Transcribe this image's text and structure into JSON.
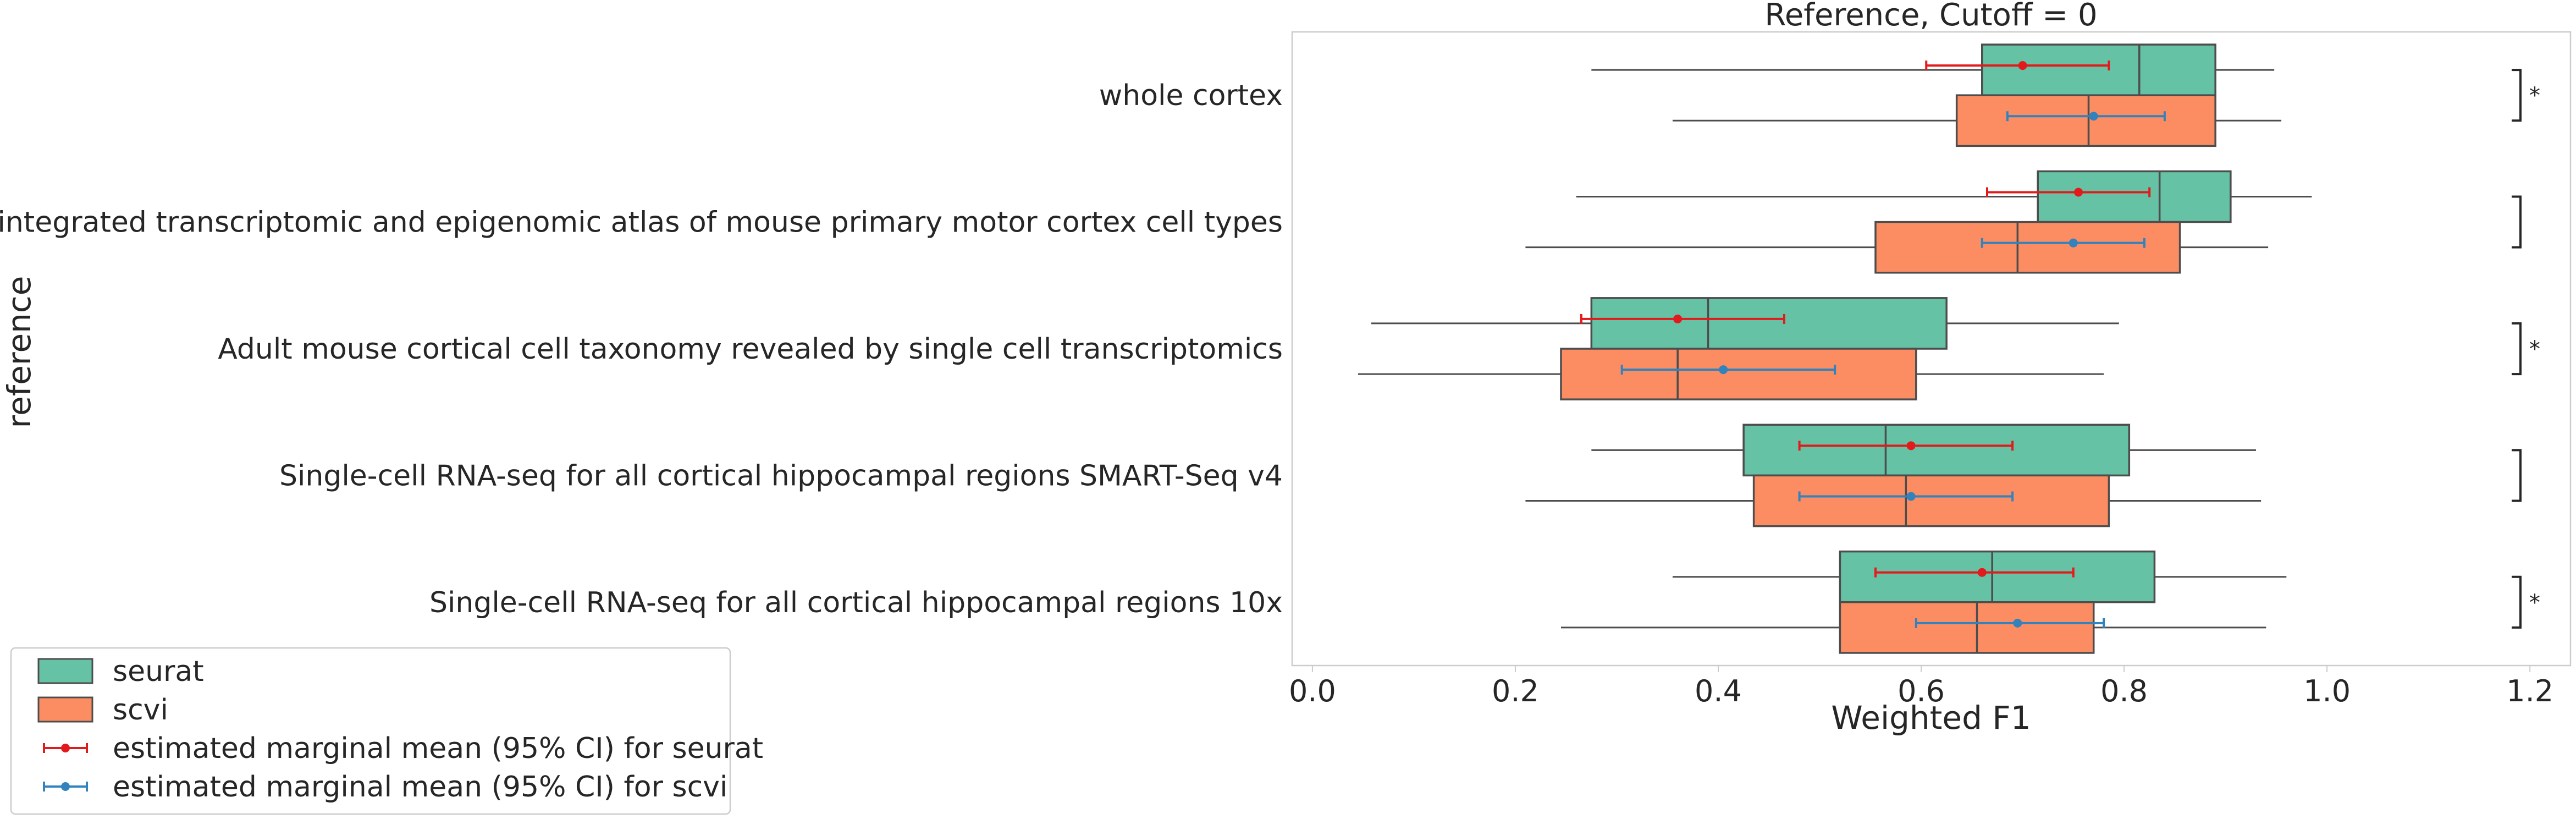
{
  "chart_data": {
    "type": "boxplot",
    "title": "Reference, Cutoff = 0",
    "xlabel": "Weighted F1",
    "ylabel": "reference",
    "xlim": [
      -0.02,
      1.24
    ],
    "xticks": [
      0.0,
      0.2,
      0.4,
      0.6,
      0.8,
      1.0,
      1.2
    ],
    "xtick_labels": [
      "0.0",
      "0.2",
      "0.4",
      "0.6",
      "0.8",
      "1.0",
      "1.2"
    ],
    "grid": false,
    "legend_position": "lower-left",
    "categories": [
      "whole cortex",
      "An integrated transcriptomic and epigenomic atlas of mouse primary motor cortex cell types",
      "Adult mouse cortical cell taxonomy revealed by single cell transcriptomics",
      "Single-cell RNA-seq for all cortical  hippocampal regions SMART-Seq v4",
      "Single-cell RNA-seq for all cortical  hippocampal regions 10x"
    ],
    "series": [
      {
        "name": "seurat",
        "color": "#66c2a5",
        "boxes": [
          {
            "whislo": 0.275,
            "q1": 0.66,
            "med": 0.815,
            "q3": 0.89,
            "whishi": 0.948
          },
          {
            "whislo": 0.26,
            "q1": 0.715,
            "med": 0.835,
            "q3": 0.905,
            "whishi": 0.985
          },
          {
            "whislo": 0.058,
            "q1": 0.275,
            "med": 0.39,
            "q3": 0.625,
            "whishi": 0.795
          },
          {
            "whislo": 0.275,
            "q1": 0.425,
            "med": 0.565,
            "q3": 0.805,
            "whishi": 0.93
          },
          {
            "whislo": 0.355,
            "q1": 0.52,
            "med": 0.67,
            "q3": 0.83,
            "whishi": 0.96
          }
        ]
      },
      {
        "name": "scvi",
        "color": "#fc8d62",
        "boxes": [
          {
            "whislo": 0.355,
            "q1": 0.635,
            "med": 0.765,
            "q3": 0.89,
            "whishi": 0.955
          },
          {
            "whislo": 0.21,
            "q1": 0.555,
            "med": 0.695,
            "q3": 0.855,
            "whishi": 0.942
          },
          {
            "whislo": 0.045,
            "q1": 0.245,
            "med": 0.36,
            "q3": 0.595,
            "whishi": 0.78
          },
          {
            "whislo": 0.21,
            "q1": 0.435,
            "med": 0.585,
            "q3": 0.785,
            "whishi": 0.935
          },
          {
            "whislo": 0.245,
            "q1": 0.52,
            "med": 0.655,
            "q3": 0.77,
            "whishi": 0.94
          }
        ]
      }
    ],
    "emmeans": [
      {
        "name": "estimated marginal mean (95% CI) for seurat",
        "color": "#e31a1c",
        "points": [
          {
            "mean": 0.7,
            "lo": 0.605,
            "hi": 0.785
          },
          {
            "mean": 0.755,
            "lo": 0.665,
            "hi": 0.825
          },
          {
            "mean": 0.36,
            "lo": 0.265,
            "hi": 0.465
          },
          {
            "mean": 0.59,
            "lo": 0.48,
            "hi": 0.69
          },
          {
            "mean": 0.66,
            "lo": 0.555,
            "hi": 0.75
          }
        ]
      },
      {
        "name": "estimated marginal mean (95% CI) for scvi",
        "color": "#3182bd",
        "points": [
          {
            "mean": 0.77,
            "lo": 0.685,
            "hi": 0.84
          },
          {
            "mean": 0.75,
            "lo": 0.66,
            "hi": 0.82
          },
          {
            "mean": 0.405,
            "lo": 0.305,
            "hi": 0.515
          },
          {
            "mean": 0.59,
            "lo": 0.48,
            "hi": 0.69
          },
          {
            "mean": 0.695,
            "lo": 0.595,
            "hi": 0.78
          }
        ]
      }
    ],
    "significance": [
      "*",
      "",
      "*",
      "",
      "*"
    ],
    "significance_color": "#e31a1c"
  }
}
